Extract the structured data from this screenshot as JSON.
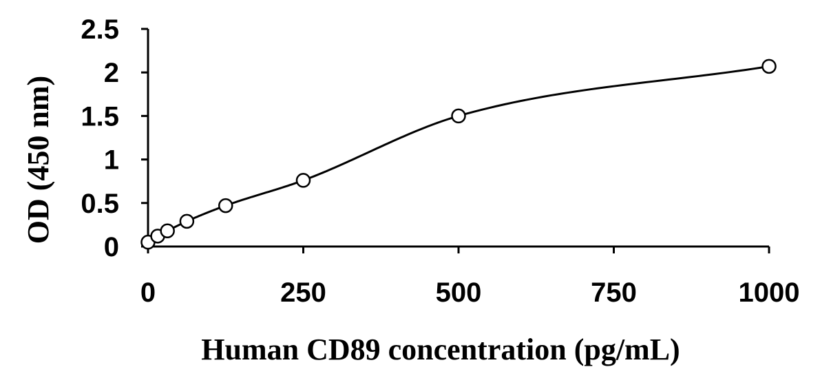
{
  "chart_data": {
    "type": "scatter",
    "title": "",
    "xlabel": "Human CD89 concentration (pg/mL)",
    "ylabel": "OD (450 nm)",
    "xlim": [
      0,
      1000
    ],
    "ylim": [
      0,
      2.5
    ],
    "x_ticks": [
      "0",
      "250",
      "500",
      "750",
      "1000"
    ],
    "y_ticks": [
      "0",
      "0.5",
      "1",
      "1.5",
      "2",
      "2.5"
    ],
    "grid": false,
    "legend": "none",
    "marker": "open-circle",
    "fit": "smooth-curve",
    "points": [
      {
        "x": 0,
        "y": 0.05
      },
      {
        "x": 15.6,
        "y": 0.12
      },
      {
        "x": 31.25,
        "y": 0.18
      },
      {
        "x": 62.5,
        "y": 0.29
      },
      {
        "x": 125,
        "y": 0.47
      },
      {
        "x": 250,
        "y": 0.76
      },
      {
        "x": 500,
        "y": 1.5
      },
      {
        "x": 1000,
        "y": 2.07
      }
    ]
  }
}
